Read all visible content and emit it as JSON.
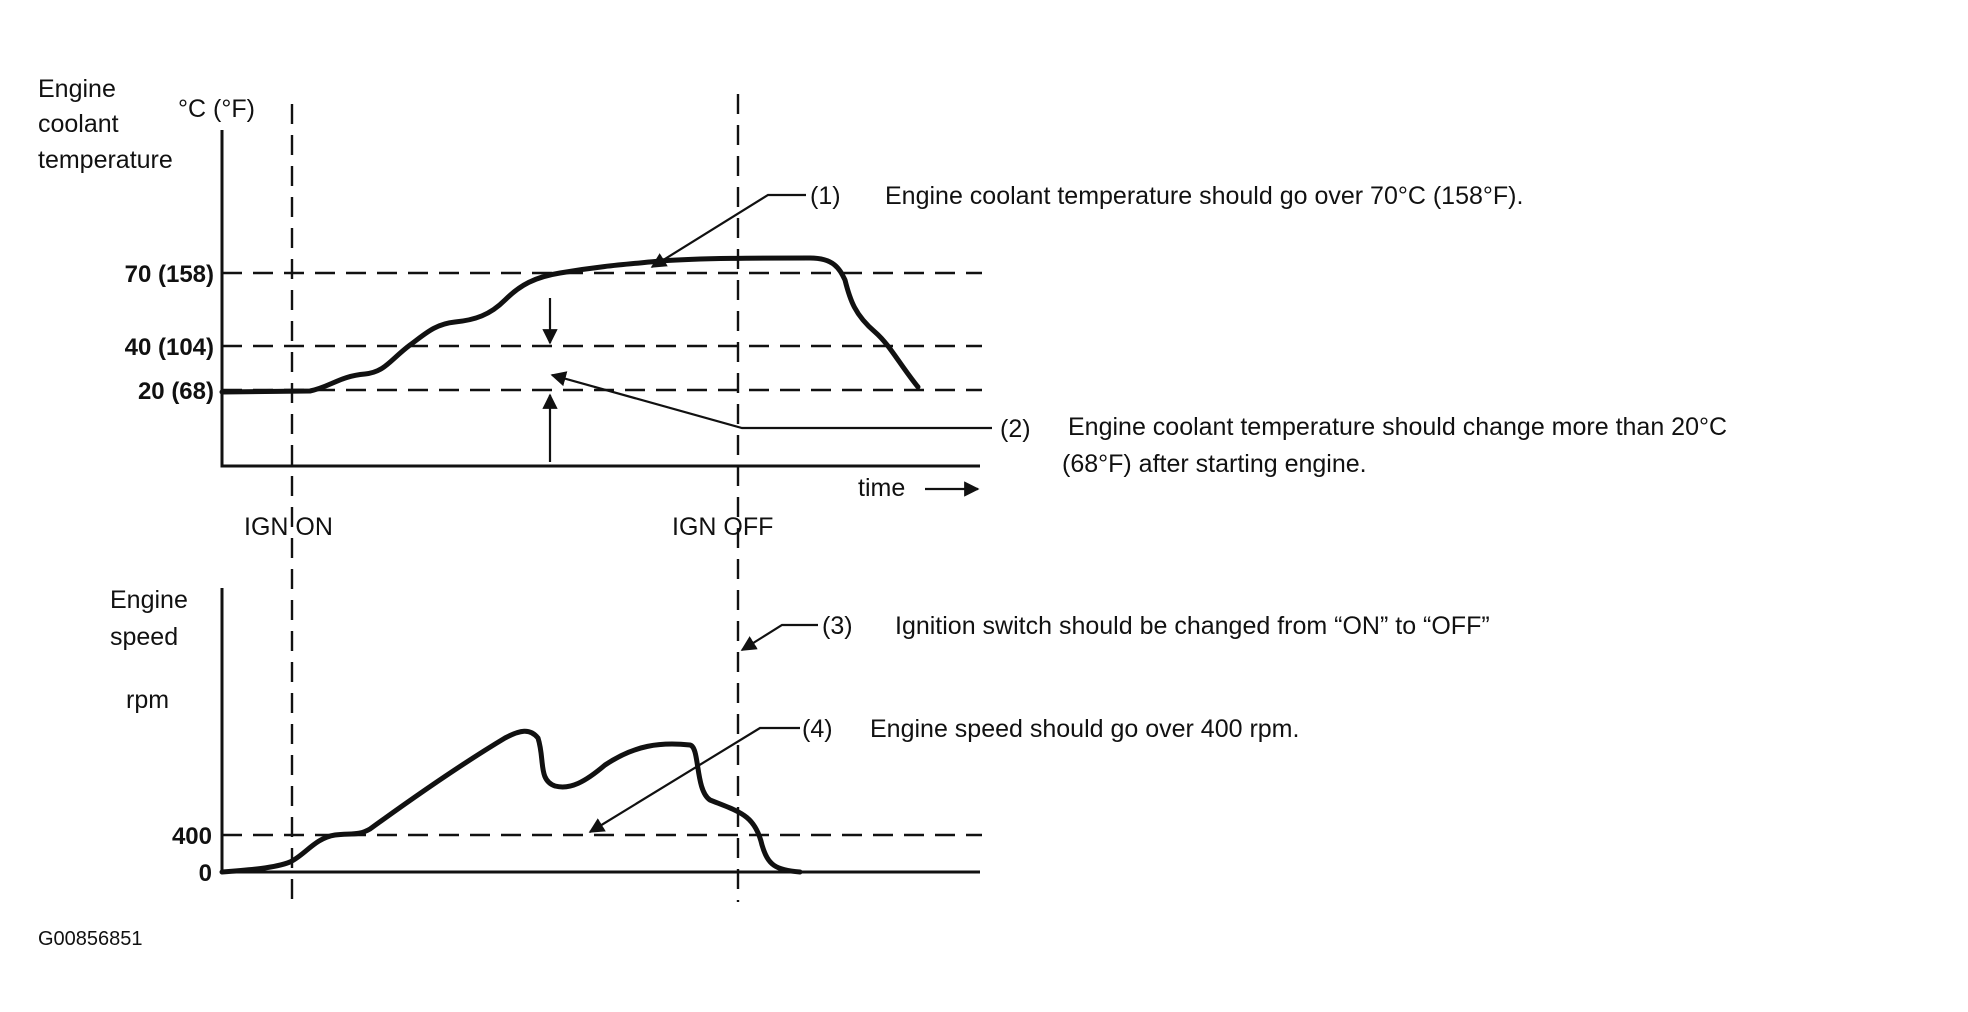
{
  "top_chart": {
    "ylabel": [
      "Engine",
      "coolant",
      "temperature"
    ],
    "unit": "°C (°F)",
    "ticks": [
      "70 (158)",
      "40 (104)",
      "20 (68)"
    ],
    "xlabel": "time",
    "event_on": "IGN ON",
    "event_off": "IGN OFF"
  },
  "bottom_chart": {
    "ylabel": [
      "Engine",
      "speed"
    ],
    "unit": "rpm",
    "ticks": [
      "400",
      "0"
    ]
  },
  "callouts": [
    {
      "num": "(1)",
      "lines": [
        "Engine coolant temperature should go over 70°C (158°F)."
      ]
    },
    {
      "num": "(2)",
      "lines": [
        "Engine coolant temperature should change more than 20°C",
        "(68°F) after starting engine."
      ]
    },
    {
      "num": "(3)",
      "lines": [
        "Ignition switch should be changed from “ON” to “OFF”"
      ]
    },
    {
      "num": "(4)",
      "lines": [
        "Engine speed should go over 400 rpm."
      ]
    }
  ],
  "figure_id": "G00856851"
}
